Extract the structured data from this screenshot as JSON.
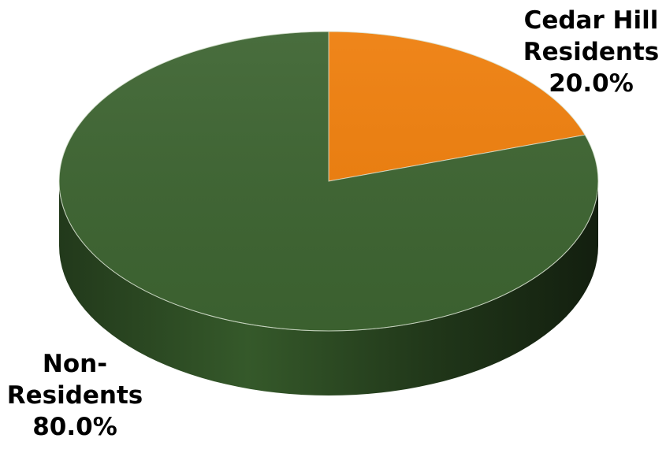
{
  "chart_data": {
    "type": "pie",
    "title": "",
    "three_d": true,
    "slices": [
      {
        "label_lines": [
          "Cedar Hill",
          "Residents"
        ],
        "percent_label": "20.0%",
        "value": 20.0,
        "color": "#EE7E0C"
      },
      {
        "label_lines": [
          "Non-",
          "Residents"
        ],
        "percent_label": "80.0%",
        "value": 80.0,
        "color": "#3D6431"
      }
    ],
    "legend": "none"
  }
}
